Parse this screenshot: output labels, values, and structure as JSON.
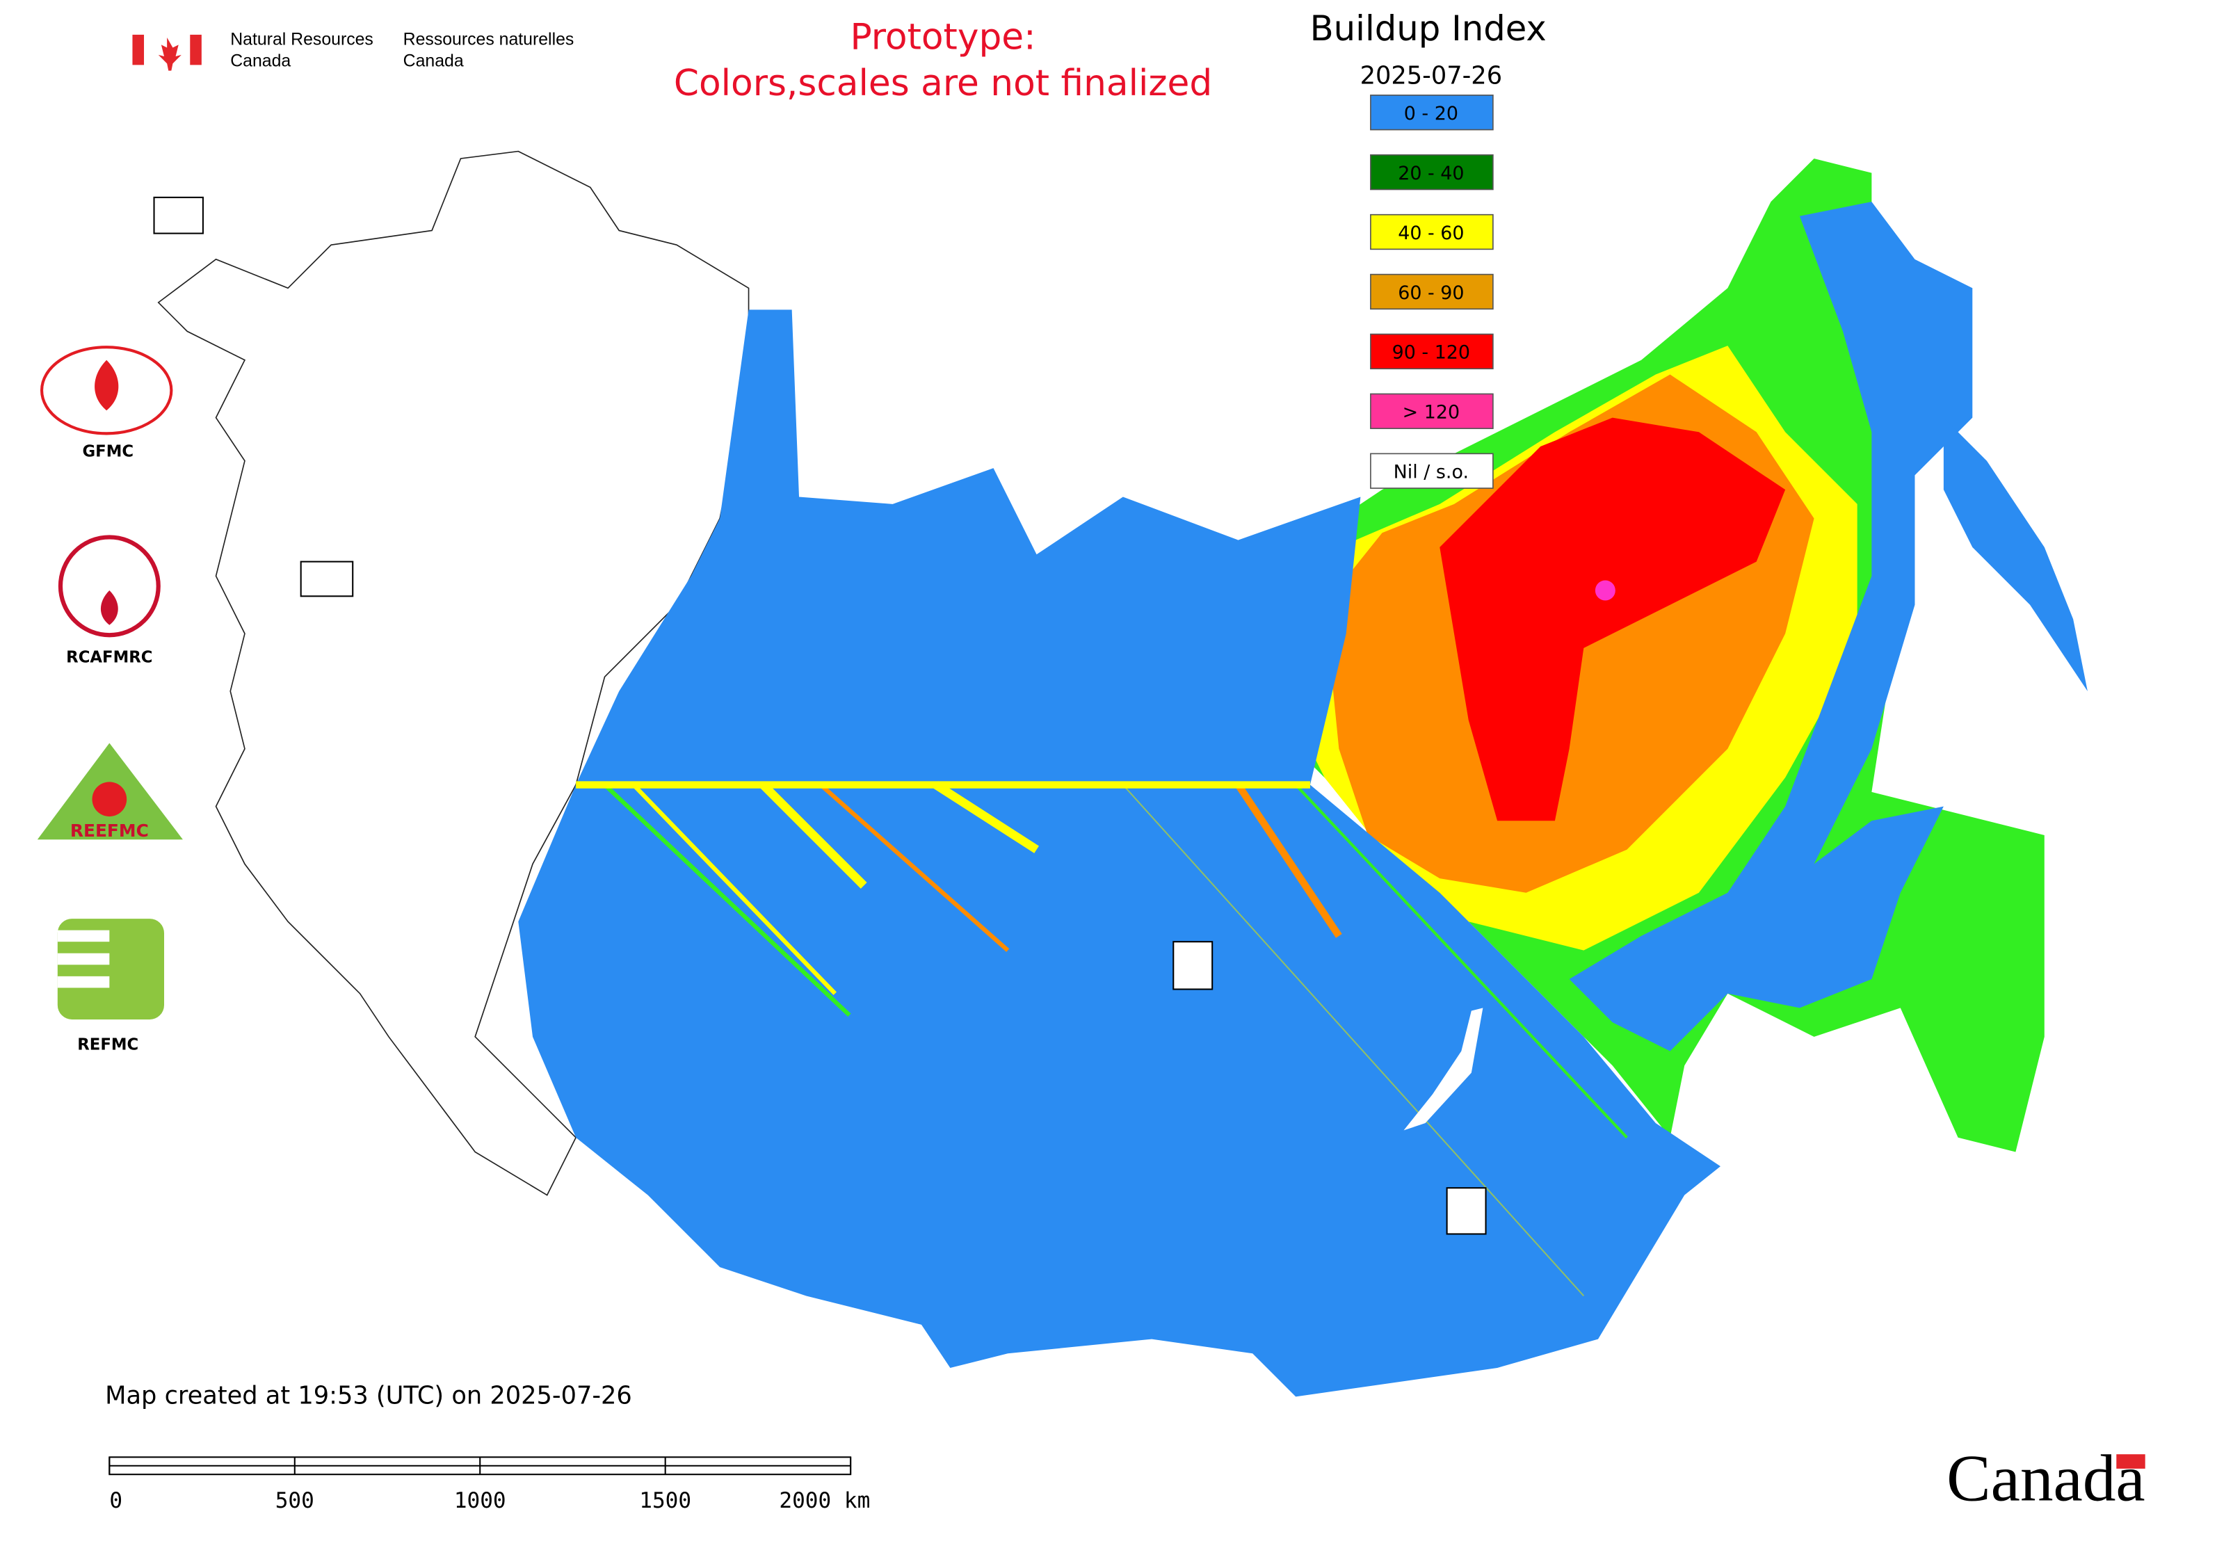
{
  "header": {
    "en": [
      "Natural Resources",
      "Canada"
    ],
    "fr": [
      "Ressources naturelles",
      "Canada"
    ]
  },
  "notice": [
    "Prototype:",
    "Colors,scales are not finalized"
  ],
  "legend": {
    "title": "Buildup Index",
    "date": "2025-07-26",
    "items": [
      {
        "label": "0 - 20",
        "color": "#2b8cf2"
      },
      {
        "label": "20 - 40",
        "color": "#008000"
      },
      {
        "label": "40 - 60",
        "color": "#ffff00"
      },
      {
        "label": "60 - 90",
        "color": "#e69a00"
      },
      {
        "label": "90 - 120",
        "color": "#ff0000"
      },
      {
        "label": "> 120",
        "color": "#ff3399"
      },
      {
        "label": "Nil / s.o.",
        "color": "#ffffff"
      }
    ]
  },
  "logos": [
    {
      "name": "GFMC"
    },
    {
      "name": "RCAFMRC"
    },
    {
      "name": "REEFMC"
    },
    {
      "name": "REFMC"
    }
  ],
  "footer": "Map created at 19:53 (UTC) on 2025-07-26",
  "scale_bar": [
    "0",
    "500",
    "1000",
    "1500",
    "2000 km"
  ],
  "wordmark": "Canada"
}
